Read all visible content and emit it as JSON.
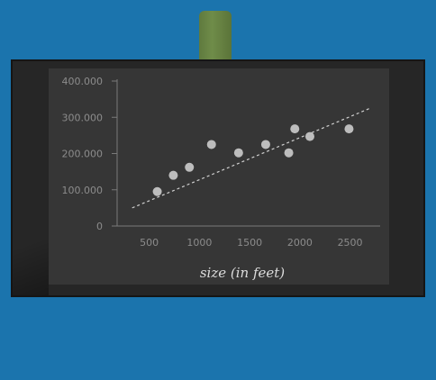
{
  "chart_data": {
    "type": "scatter",
    "title": "",
    "xlabel": "size (in feet)",
    "ylabel": "",
    "x_ticks": [
      "500",
      "1000",
      "1500",
      "2000",
      "2500"
    ],
    "x_tick_values": [
      500,
      1000,
      1500,
      2000,
      2500
    ],
    "y_ticks": [
      "0",
      "100.000",
      "200.000",
      "300.000",
      "400.000"
    ],
    "y_tick_values": [
      0,
      100000,
      200000,
      300000,
      400000
    ],
    "xlim": [
      180,
      2800
    ],
    "ylim": [
      0,
      405000
    ],
    "points": [
      {
        "x": 580,
        "y": 95000
      },
      {
        "x": 740,
        "y": 140000
      },
      {
        "x": 900,
        "y": 162000
      },
      {
        "x": 1120,
        "y": 225000
      },
      {
        "x": 1390,
        "y": 202000
      },
      {
        "x": 1660,
        "y": 225000
      },
      {
        "x": 1890,
        "y": 202000
      },
      {
        "x": 1950,
        "y": 268000
      },
      {
        "x": 2100,
        "y": 247000
      },
      {
        "x": 2490,
        "y": 268000
      }
    ],
    "trendline": {
      "x": [
        330,
        2700
      ],
      "y": [
        50000,
        325000
      ]
    },
    "grid": false,
    "legend": false
  },
  "colors": {
    "background": "#1b74ad",
    "screen": "#363636",
    "bezel": "#262626",
    "stand": "#6f8c49",
    "axis": "#7a7a7a",
    "tick_text": "#8c8c8c",
    "point": "#bdbdbd",
    "trend": "#d0d0d0",
    "label": "#dddddd"
  }
}
